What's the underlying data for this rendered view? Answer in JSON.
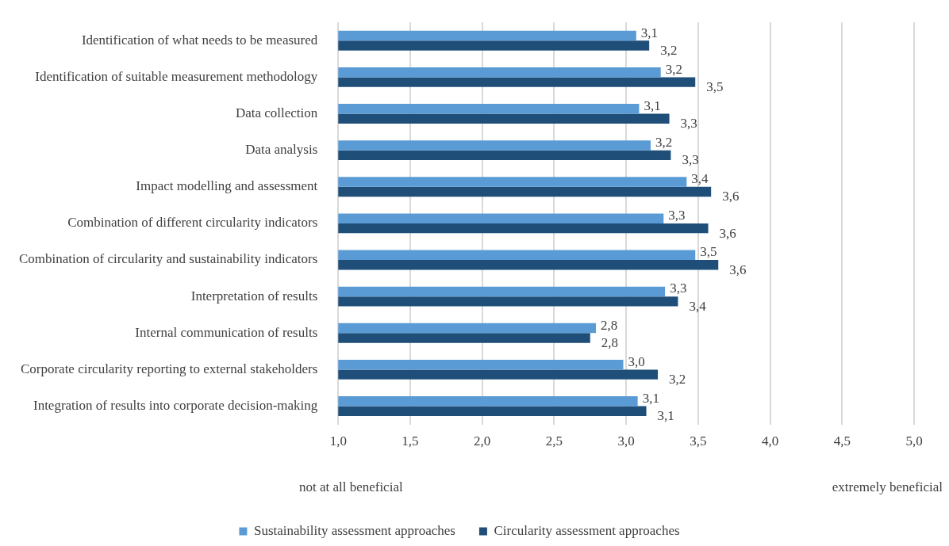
{
  "chart_data": {
    "type": "bar",
    "orientation": "horizontal",
    "categories": [
      "Identification of what needs to be measured",
      "Identification of suitable measurement methodology",
      "Data collection",
      "Data analysis",
      "Impact modelling and assessment",
      "Combination of different circularity indicators",
      "Combination of circularity and sustainability indicators",
      "Interpretation of results",
      "Internal communication of results",
      "Corporate circularity reporting to external stakeholders",
      "Integration of results into corporate decision-making"
    ],
    "series": [
      {
        "name": "Sustainability assessment approaches",
        "color": "#5b9bd5",
        "values": [
          3.07,
          3.24,
          3.09,
          3.17,
          3.42,
          3.26,
          3.48,
          3.27,
          2.79,
          2.98,
          3.08
        ],
        "value_labels": [
          "3,1",
          "3,2",
          "3,1",
          "3,2",
          "3,4",
          "3,3",
          "3,5",
          "3,3",
          "2,8",
          "3,0",
          "3,1"
        ]
      },
      {
        "name": "Circularity assessment approaches",
        "color": "#1f4e79",
        "values": [
          3.16,
          3.48,
          3.3,
          3.31,
          3.59,
          3.57,
          3.64,
          3.36,
          2.75,
          3.22,
          3.14
        ],
        "value_labels": [
          "3,2",
          "3,5",
          "3,3",
          "3,3",
          "3,6",
          "3,6",
          "3,6",
          "3,4",
          "2,8",
          "3,2",
          "3,1"
        ]
      }
    ],
    "xlim": [
      1,
      5
    ],
    "xticks": [
      {
        "value": 1,
        "label": "1,0"
      },
      {
        "value": 1.5,
        "label": "1,5"
      },
      {
        "value": 2,
        "label": "2,0"
      },
      {
        "value": 2.5,
        "label": "2,5"
      },
      {
        "value": 3,
        "label": "3,0"
      },
      {
        "value": 3.5,
        "label": "3,5"
      },
      {
        "value": 4,
        "label": "4,0"
      },
      {
        "value": 4.5,
        "label": "4,5"
      },
      {
        "value": 5,
        "label": "5,0"
      }
    ],
    "grid": "x",
    "legend": "bottom",
    "annotations": [
      "not at all beneficial",
      "extremely beneficial"
    ]
  }
}
